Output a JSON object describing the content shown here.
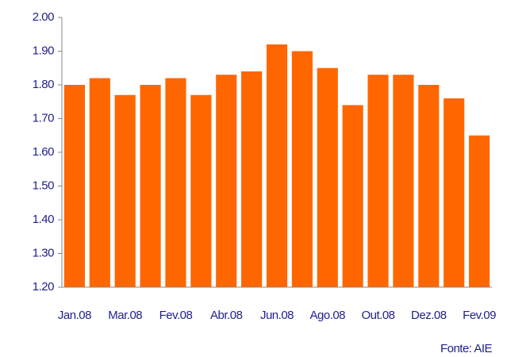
{
  "chart_data": {
    "type": "bar",
    "categories": [
      "Jan.08",
      null,
      "Mar.08",
      null,
      "Fev.08",
      null,
      "Abr.08",
      null,
      "Jun.08",
      null,
      "Ago.08",
      null,
      "Out.08",
      null,
      "Dez.08",
      null,
      "Fev.09"
    ],
    "values": [
      1.8,
      1.82,
      1.77,
      1.8,
      1.82,
      1.77,
      1.83,
      1.84,
      1.92,
      1.9,
      1.85,
      1.74,
      1.83,
      1.83,
      1.8,
      1.76,
      1.65
    ],
    "color": "#ff6600",
    "ylim": [
      1.2,
      2.0
    ],
    "yticks": [
      {
        "value": 1.2,
        "label": "1.20"
      },
      {
        "value": 1.3,
        "label": "1.30"
      },
      {
        "value": 1.4,
        "label": "1.40"
      },
      {
        "value": 1.5,
        "label": "1.50"
      },
      {
        "value": 1.6,
        "label": "1.60"
      },
      {
        "value": 1.7,
        "label": "1.70"
      },
      {
        "value": 1.8,
        "label": "1.80"
      },
      {
        "value": 1.9,
        "label": "1.90"
      },
      {
        "value": 2.0,
        "label": "2.00"
      }
    ],
    "source": "Fonte: AIE"
  }
}
